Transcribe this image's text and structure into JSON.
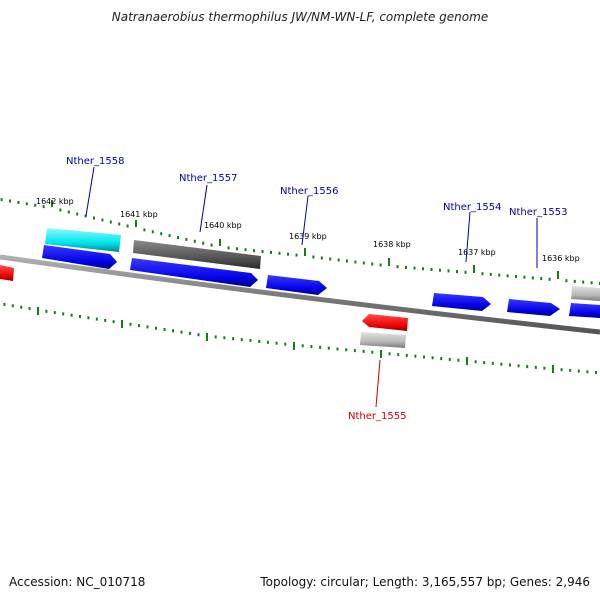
{
  "title": "Natranaerobius thermophilus JW/NM-WN-LF, complete genome",
  "footer": {
    "accession": "Accession: NC_010718",
    "summary": "Topology: circular; Length: 3,165,557 bp; Genes: 2,946"
  },
  "colors": {
    "backbone": "#808080",
    "ticks": "#1a7a1a",
    "forward_cds": "#0000ee",
    "forward_label": "#0000aa",
    "reverse_cds": "#ee0000",
    "reverse_label": "#cc0000",
    "highlight_cyan": "#00e5ee",
    "dark_gray": "#555555",
    "light_gray": "#bbbbbb"
  },
  "scale_ticks": [
    "1642 kbp",
    "1641 kbp",
    "1640 kbp",
    "1639 kbp",
    "1638 kbp",
    "1637 kbp",
    "1636 kbp"
  ],
  "gene_labels": {
    "g1558": "Nther_1558",
    "g1557": "Nther_1557",
    "g1556": "Nther_1556",
    "g1555": "Nther_1555",
    "g1554": "Nther_1554",
    "g1553": "Nther_1553"
  }
}
